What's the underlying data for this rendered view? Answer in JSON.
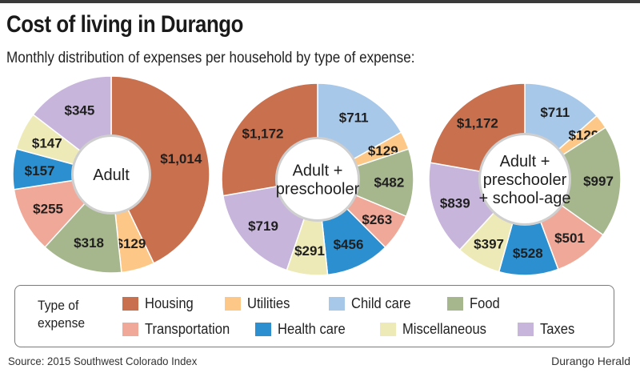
{
  "title": "Cost of living in Durango",
  "subtitle": "Monthly distribution of expenses per household by type of expense:",
  "legend": {
    "label_line1": "Type of",
    "label_line2": "expense",
    "items": [
      {
        "key": "housing",
        "label": "Housing",
        "color": "#c9704f"
      },
      {
        "key": "utilities",
        "label": "Utilities",
        "color": "#fdc887"
      },
      {
        "key": "childcare",
        "label": "Child care",
        "color": "#a8c8ea"
      },
      {
        "key": "food",
        "label": "Food",
        "color": "#a7b78d"
      },
      {
        "key": "transportation",
        "label": "Transportation",
        "color": "#f0a898"
      },
      {
        "key": "healthcare",
        "label": "Health care",
        "color": "#2c8fd0"
      },
      {
        "key": "miscellaneous",
        "label": "Miscellaneous",
        "color": "#eeeab8"
      },
      {
        "key": "taxes",
        "label": "Taxes",
        "color": "#c7b5dc"
      }
    ]
  },
  "chart_data": [
    {
      "type": "pie",
      "center_label": [
        "Adult"
      ],
      "slices": [
        {
          "category": "housing",
          "value": 1014,
          "label": "$1,014"
        },
        {
          "category": "utilities",
          "value": 129,
          "label": "$129"
        },
        {
          "category": "food",
          "value": 318,
          "label": "$318"
        },
        {
          "category": "transportation",
          "value": 255,
          "label": "$255"
        },
        {
          "category": "healthcare",
          "value": 157,
          "label": "$157"
        },
        {
          "category": "miscellaneous",
          "value": 147,
          "label": "$147"
        },
        {
          "category": "taxes",
          "value": 345,
          "label": "$345"
        }
      ]
    },
    {
      "type": "pie",
      "center_label": [
        "Adult +",
        "preschooler"
      ],
      "slices": [
        {
          "category": "childcare",
          "value": 711,
          "label": "$711"
        },
        {
          "category": "utilities",
          "value": 129,
          "label": "$129"
        },
        {
          "category": "food",
          "value": 482,
          "label": "$482"
        },
        {
          "category": "transportation",
          "value": 263,
          "label": "$263"
        },
        {
          "category": "healthcare",
          "value": 456,
          "label": "$456"
        },
        {
          "category": "miscellaneous",
          "value": 291,
          "label": "$291"
        },
        {
          "category": "taxes",
          "value": 719,
          "label": "$719"
        },
        {
          "category": "housing",
          "value": 1172,
          "label": "$1,172"
        }
      ]
    },
    {
      "type": "pie",
      "center_label": [
        "Adult +",
        "preschooler",
        "+ school-age"
      ],
      "slices": [
        {
          "category": "childcare",
          "value": 711,
          "label": "$711"
        },
        {
          "category": "utilities",
          "value": 129,
          "label": "$129"
        },
        {
          "category": "food",
          "value": 997,
          "label": "$997"
        },
        {
          "category": "transportation",
          "value": 501,
          "label": "$501"
        },
        {
          "category": "healthcare",
          "value": 528,
          "label": "$528"
        },
        {
          "category": "miscellaneous",
          "value": 397,
          "label": "$397"
        },
        {
          "category": "taxes",
          "value": 839,
          "label": "$839"
        },
        {
          "category": "housing",
          "value": 1172,
          "label": "$1,172"
        }
      ]
    }
  ],
  "source": "Source: 2015 Southwest Colorado Index",
  "credit": "Durango Herald"
}
